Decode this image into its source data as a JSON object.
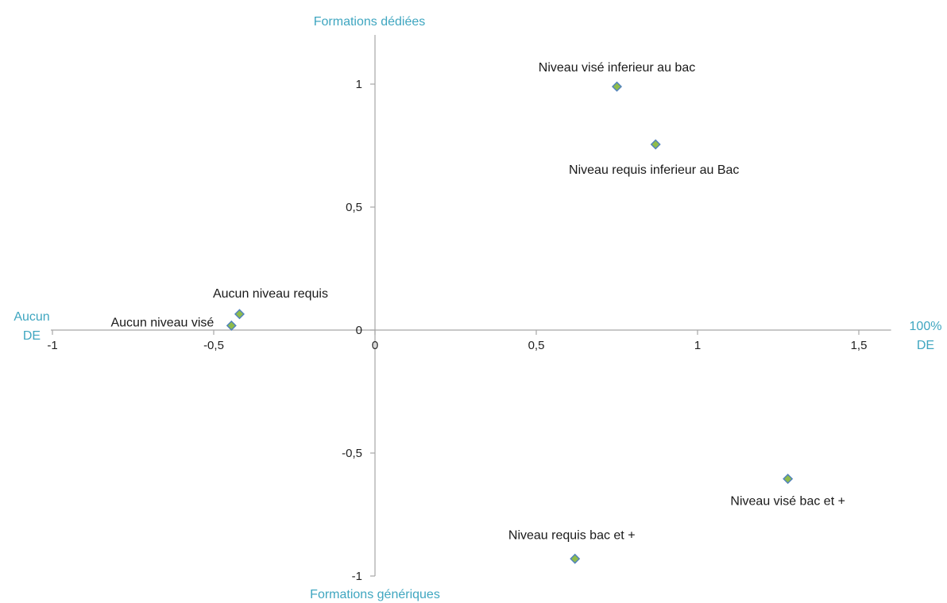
{
  "chart_data": {
    "type": "scatter",
    "title": "",
    "xlabel": "",
    "ylabel": "",
    "xlim": [
      -1,
      1.6
    ],
    "ylim": [
      -1,
      1.2
    ],
    "xticks": [
      -1,
      -0.5,
      0,
      0.5,
      1,
      1.5
    ],
    "xtick_labels": [
      "-1",
      "-0,5",
      "0",
      "0,5",
      "1",
      "1,5"
    ],
    "yticks": [
      -1,
      -0.5,
      0,
      0.5,
      1
    ],
    "ytick_labels": [
      "-1",
      "-0,5",
      "0",
      "0,5",
      "1"
    ],
    "grid": false,
    "legend": "none",
    "marker": "diamond",
    "marker_fill": "#8fbc4b",
    "marker_stroke": "#4f81bd",
    "accent_color": "#3fa6c0",
    "poles": {
      "top": "Formations dédiées",
      "bottom": "Formations génériques",
      "left": [
        "Aucun",
        "DE"
      ],
      "right": [
        "100%",
        "DE"
      ]
    },
    "points": [
      {
        "label": "Niveau visé inferieur au bac",
        "x": 0.75,
        "y": 0.99
      },
      {
        "label": "Niveau requis inferieur au Bac",
        "x": 0.87,
        "y": 0.755
      },
      {
        "label": "Aucun niveau requis",
        "x": -0.42,
        "y": 0.065
      },
      {
        "label": "Aucun niveau visé",
        "x": -0.445,
        "y": 0.018
      },
      {
        "label": "Niveau visé bac et +",
        "x": 1.28,
        "y": -0.605
      },
      {
        "label": "Niveau requis bac et +",
        "x": 0.62,
        "y": -0.93
      }
    ]
  }
}
